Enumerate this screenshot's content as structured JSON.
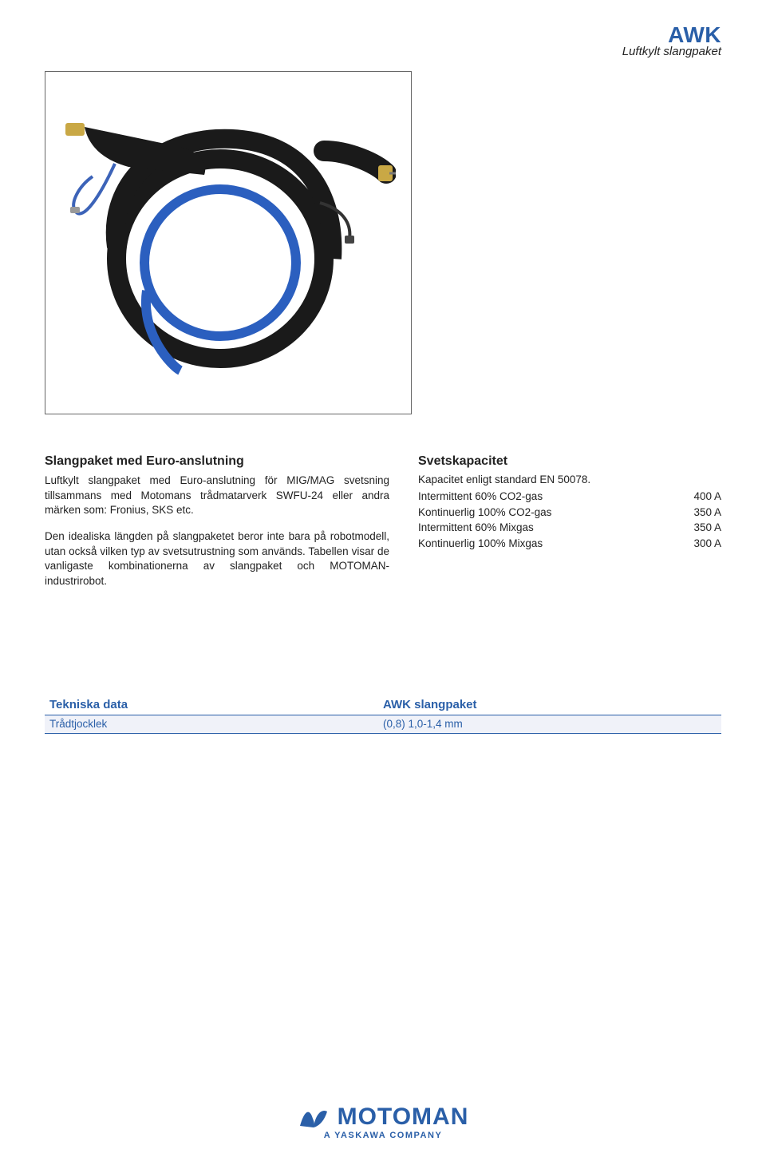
{
  "colors": {
    "brand_blue": "#2a5fa8",
    "text": "#222222",
    "table_row_bg": "#f0f2f9",
    "border": "#2a5fa8",
    "border_dark": "#1f3e6e"
  },
  "header": {
    "title": "AWK",
    "subtitle": "Luftkylt slangpaket"
  },
  "section_left": {
    "title": "Slangpaket med Euro-anslutning",
    "p1": "Luftkylt slangpaket med Euro-anslutning för MIG/MAG svetsning tillsammans med Motomans trådmatarverk SWFU-24 eller andra märken som: Fronius, SKS etc.",
    "p2": "Den idealiska längden på slangpaketet beror inte bara på robotmodell, utan också vilken typ av svetsutrustning som används. Tabellen visar de vanligaste kombinationerna av slangpaket och MOTOMAN-industrirobot."
  },
  "section_right": {
    "title": "Svetskapacitet",
    "subtitle": "Kapacitet enligt standard EN 50078.",
    "rows": [
      {
        "label": "Intermittent 60% CO2-gas",
        "value": "400 A"
      },
      {
        "label": "Kontinuerlig 100% CO2-gas",
        "value": "350 A"
      },
      {
        "label": "Intermittent 60% Mixgas",
        "value": "350 A"
      },
      {
        "label": "Kontinuerlig 100% Mixgas",
        "value": "300 A"
      }
    ]
  },
  "tech_table": {
    "header_left": "Tekniska data",
    "header_right": "AWK slangpaket",
    "rows": [
      {
        "left": "Trådtjocklek",
        "right": "(0,8) 1,0-1,4 mm"
      }
    ],
    "header_border_color": "#2a5fa8",
    "row_border_color": "#2a5fa8",
    "row_bg_color": "#f0f2f9"
  },
  "footer": {
    "brand": "MOTOMAN",
    "tagline": "A YASKAWA COMPANY"
  }
}
